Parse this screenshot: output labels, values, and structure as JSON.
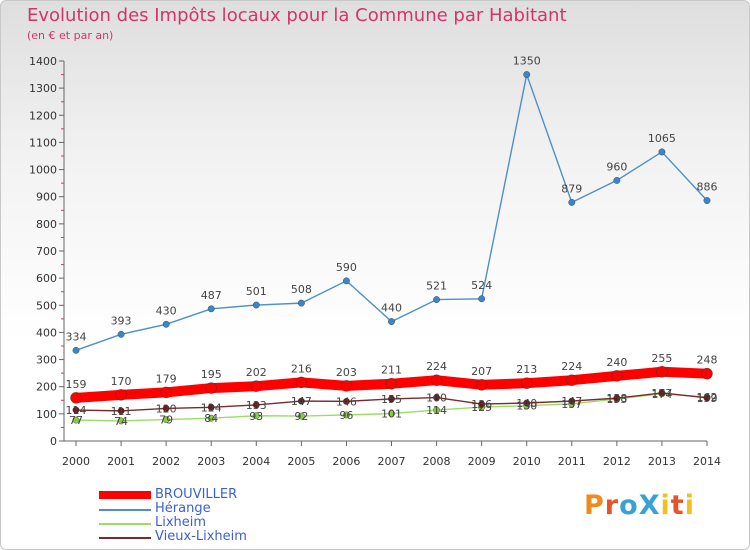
{
  "colors": {
    "title": "#d6336c",
    "BROUVILLER": "#ff0000",
    "Hérange": "#4f8fc8",
    "Lixheim": "#99dd66",
    "Vieux-Lixheim": "#7a2a2a",
    "legend_text": "#3b5fd6",
    "logo": [
      "#f08a1a",
      "#e8532a",
      "#3aa0d8",
      "#3aa0d8",
      "#f0c020",
      "#e8532a",
      "#f0c020",
      "#3aa0d8"
    ]
  },
  "chart_data": {
    "type": "line",
    "title": "Evolution des Impôts locaux pour la Commune par Habitant",
    "subtitle": "(en € et par an)",
    "x": [
      "2000",
      "2001",
      "2002",
      "2003",
      "2004",
      "2005",
      "2006",
      "2007",
      "2008",
      "2009",
      "2010",
      "2011",
      "2012",
      "2013",
      "2014"
    ],
    "ylim": [
      0,
      1400
    ],
    "yticks": [
      0,
      100,
      200,
      300,
      400,
      500,
      600,
      700,
      800,
      900,
      1000,
      1100,
      1200,
      1300,
      1400
    ],
    "grid": false,
    "legend_position": "bottom-left",
    "series": [
      {
        "name": "BROUVILLER",
        "values": [
          159,
          170,
          179,
          195,
          202,
          216,
          203,
          211,
          224,
          207,
          213,
          224,
          240,
          255,
          248
        ]
      },
      {
        "name": "Hérange",
        "values": [
          334,
          393,
          430,
          487,
          501,
          508,
          590,
          440,
          521,
          524,
          1350,
          879,
          960,
          1065,
          886
        ]
      },
      {
        "name": "Lixheim",
        "values": [
          77,
          74,
          79,
          84,
          93,
          92,
          96,
          101,
          114,
          125,
          130,
          137,
          155,
          174,
          162
        ]
      },
      {
        "name": "Vieux-Lixheim",
        "values": [
          114,
          111,
          120,
          124,
          133,
          147,
          146,
          155,
          160,
          136,
          140,
          147,
          158,
          177,
          159
        ]
      }
    ]
  },
  "legend": [
    "BROUVILLER",
    "Hérange",
    "Lixheim",
    "Vieux-Lixheim"
  ],
  "logo_text": "ProXiti"
}
